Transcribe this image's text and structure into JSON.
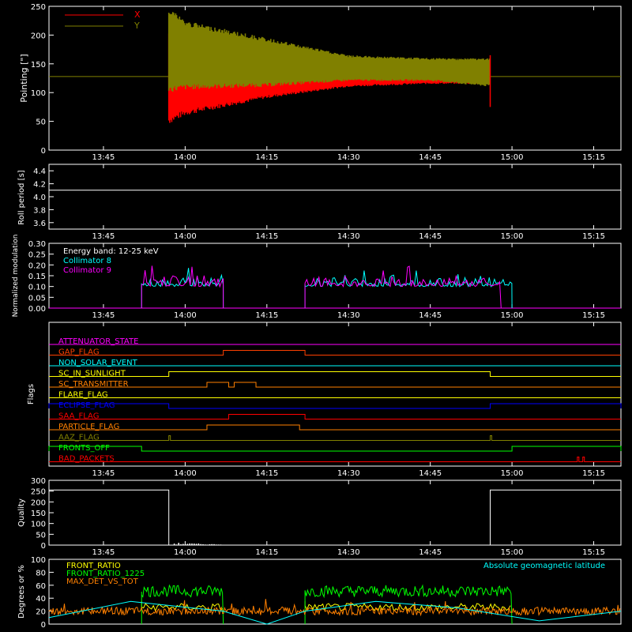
{
  "time_ticks": [
    "13:45",
    "14:00",
    "14:15",
    "14:30",
    "14:45",
    "15:00",
    "15:15"
  ],
  "colors": {
    "x": "#ff0000",
    "y": "#808000",
    "white": "#ffffff",
    "cyan": "#00ffff",
    "magenta": "#ff00ff",
    "green": "#00ff00",
    "orange": "#ff8000"
  },
  "chart_data": [
    {
      "type": "line",
      "ylabel": "Pointing [\"]",
      "ylim": [
        0,
        250
      ],
      "yticks": [
        "0",
        "50",
        "100",
        "150",
        "200",
        "250"
      ],
      "legend": [
        "X",
        "Y"
      ],
      "series": [
        {
          "name": "X",
          "color": "#ff0000",
          "x": [
            "13:57",
            "14:00",
            "14:15",
            "14:30",
            "14:45",
            "14:56"
          ],
          "y_min": [
            45,
            60,
            90,
            110,
            115,
            115
          ],
          "y_max": [
            210,
            190,
            160,
            150,
            150,
            155
          ]
        },
        {
          "name": "Y",
          "color": "#808000",
          "x": [
            "13:57",
            "14:00",
            "14:15",
            "14:30",
            "14:45",
            "14:56"
          ],
          "y_min": [
            100,
            105,
            110,
            120,
            120,
            110
          ],
          "y_max": [
            250,
            225,
            195,
            165,
            160,
            160
          ]
        }
      ],
      "baseline": 128,
      "x_range": [
        "13:35",
        "15:20"
      ]
    },
    {
      "type": "line",
      "ylabel": "Roll period [s]",
      "ylim": [
        3.5,
        4.5
      ],
      "yticks": [
        "3.6",
        "3.8",
        "4.0",
        "4.2",
        "4.4"
      ],
      "series": [
        {
          "name": "roll",
          "color": "#ffffff",
          "value": 4.1
        }
      ]
    },
    {
      "type": "line",
      "ylabel": "Normalized modulation",
      "ylim": [
        0,
        0.3
      ],
      "yticks": [
        "0.00",
        "0.05",
        "0.10",
        "0.15",
        "0.20",
        "0.25",
        "0.30"
      ],
      "legend": [
        "Energy band: 12-25 keV",
        "Collimator 8",
        "Collimator 9"
      ],
      "series": [
        {
          "name": "Collimator 8",
          "color": "#00ffff",
          "segments": [
            [
              "13:52",
              "14:07"
            ],
            [
              "14:22",
              "15:00"
            ]
          ],
          "level": 0.11
        },
        {
          "name": "Collimator 9",
          "color": "#ff00ff",
          "segments": [
            [
              "13:52",
              "14:07"
            ],
            [
              "14:22",
              "14:58"
            ]
          ],
          "level": 0.11
        }
      ]
    },
    {
      "type": "line",
      "ylabel": "Flags",
      "flags": [
        {
          "name": "ATTENUATOR_STATE",
          "color": "#ff00ff",
          "high": []
        },
        {
          "name": "GAP_FLAG",
          "color": "#ff4000",
          "high": [
            [
              "14:07",
              "14:22"
            ]
          ]
        },
        {
          "name": "NON_SOLAR_EVENT",
          "color": "#00ffff",
          "high": []
        },
        {
          "name": "SC_IN_SUNLIGHT",
          "color": "#ffff00",
          "high": [
            [
              "13:57",
              "14:56"
            ]
          ]
        },
        {
          "name": "SC_TRANSMITTER",
          "color": "#ff8000",
          "high": [
            [
              "14:04",
              "14:08"
            ],
            [
              "14:09",
              "14:13"
            ]
          ]
        },
        {
          "name": "FLARE_FLAG",
          "color": "#ffff00",
          "high": []
        },
        {
          "name": "ECLIPSE_FLAG",
          "color": "#0000ff",
          "high": [
            [
              "13:35",
              "13:57"
            ],
            [
              "14:56",
              "15:20"
            ]
          ]
        },
        {
          "name": "SAA_FLAG",
          "color": "#ff0000",
          "high": [
            [
              "14:08",
              "14:22"
            ]
          ]
        },
        {
          "name": "PARTICLE_FLAG",
          "color": "#ff8000",
          "high": [
            [
              "14:04",
              "14:21"
            ]
          ]
        },
        {
          "name": "AAZ_FLAG",
          "color": "#808000",
          "high": [
            [
              "13:57",
              "13:57"
            ],
            [
              "14:56",
              "14:56"
            ]
          ]
        },
        {
          "name": "FRONTS_OFF",
          "color": "#00ff00",
          "high": [
            [
              "13:35",
              "13:52"
            ],
            [
              "15:00",
              "15:20"
            ]
          ]
        },
        {
          "name": "BAD_PACKETS",
          "color": "#ff0000",
          "high": [
            [
              "15:12",
              "15:12"
            ],
            [
              "15:13",
              "15:13"
            ]
          ]
        }
      ]
    },
    {
      "type": "line",
      "ylabel": "Quality",
      "ylim": [
        0,
        300
      ],
      "yticks": [
        "0",
        "50",
        "100",
        "150",
        "200",
        "250",
        "300"
      ],
      "series": [
        {
          "name": "quality",
          "color": "#ffffff",
          "x": [
            "13:35",
            "13:57",
            "13:57",
            "14:56",
            "14:56",
            "15:20"
          ],
          "y": [
            255,
            255,
            0,
            0,
            255,
            255
          ]
        }
      ]
    },
    {
      "type": "line",
      "ylabel": "Degrees or %",
      "ylim": [
        0,
        100
      ],
      "yticks": [
        "0",
        "20",
        "40",
        "60",
        "80",
        "100"
      ],
      "legend": [
        "FRONT_RATIO",
        "FRONT_RATIO_1225",
        "MAX_DET_VS_TOT"
      ],
      "annotation": "Absolute geomagnetic latitude",
      "series": [
        {
          "name": "FRONT_RATIO",
          "color": "#ffff00"
        },
        {
          "name": "FRONT_RATIO_1225",
          "color": "#00ff00",
          "segments": [
            [
              "13:52",
              "14:07"
            ],
            [
              "14:22",
              "15:00"
            ]
          ],
          "level": 50
        },
        {
          "name": "MAX_DET_VS_TOT",
          "color": "#ff8000",
          "level": 20
        },
        {
          "name": "Absolute geomagnetic latitude",
          "color": "#00ffff",
          "x": [
            "13:35",
            "13:50",
            "14:07",
            "14:15",
            "14:22",
            "14:35",
            "14:50",
            "15:05",
            "15:20"
          ],
          "y": [
            10,
            35,
            20,
            0,
            20,
            35,
            25,
            5,
            20
          ]
        }
      ]
    }
  ]
}
